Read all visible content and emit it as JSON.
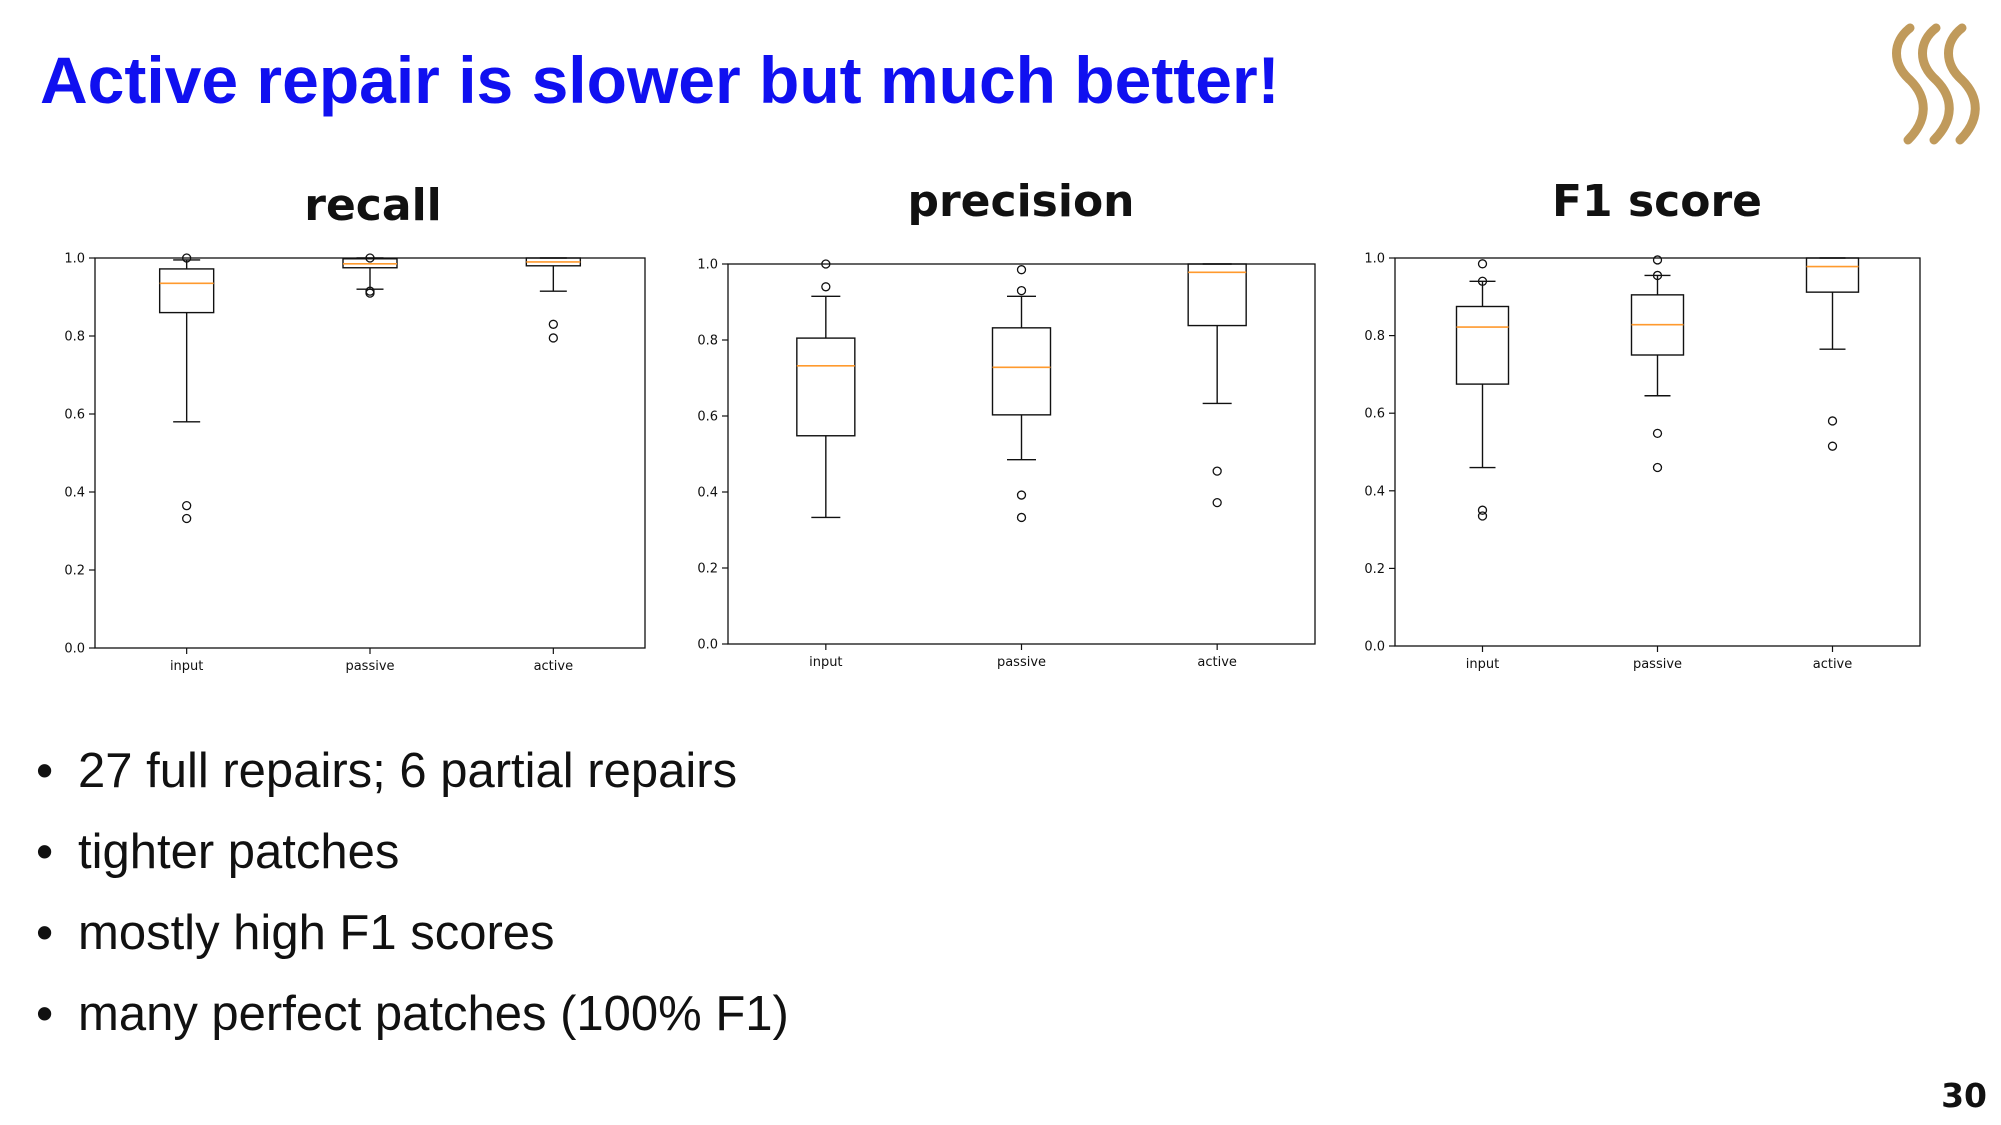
{
  "slide": {
    "title": "Active repair is slower but much better!",
    "page_number": "30",
    "title_color": "#1010f0",
    "logo_color": "#c09a5b"
  },
  "bullets": [
    "27 full repairs; 6 partial repairs",
    "tighter patches",
    "mostly high F1 scores",
    "many perfect patches (100% F1)"
  ],
  "chart_data": [
    {
      "type": "box",
      "title": "recall",
      "categories": [
        "input",
        "passive",
        "active"
      ],
      "ylim": [
        0,
        1.0
      ],
      "yticks": [
        "0.0",
        "0.2",
        "0.4",
        "0.6",
        "0.8",
        "1.0"
      ],
      "boxes": [
        {
          "whisker_low": 0.58,
          "q1": 0.86,
          "median": 0.935,
          "q3": 0.972,
          "whisker_high": 0.995,
          "outliers": [
            0.365,
            0.332,
            1.0
          ]
        },
        {
          "whisker_low": 0.92,
          "q1": 0.975,
          "median": 0.985,
          "q3": 0.998,
          "whisker_high": 1.0,
          "outliers": [
            0.915,
            0.91,
            1.0
          ]
        },
        {
          "whisker_low": 0.915,
          "q1": 0.98,
          "median": 0.99,
          "q3": 1.0,
          "whisker_high": 1.0,
          "outliers": [
            0.83,
            0.795
          ]
        }
      ]
    },
    {
      "type": "box",
      "title": "precision",
      "categories": [
        "input",
        "passive",
        "active"
      ],
      "ylim": [
        0,
        1.0
      ],
      "yticks": [
        "0.0",
        "0.2",
        "0.4",
        "0.6",
        "0.8",
        "1.0"
      ],
      "boxes": [
        {
          "whisker_low": 0.333,
          "q1": 0.548,
          "median": 0.732,
          "q3": 0.805,
          "whisker_high": 0.915,
          "outliers": [
            1.0,
            0.94
          ]
        },
        {
          "whisker_low": 0.485,
          "q1": 0.603,
          "median": 0.728,
          "q3": 0.832,
          "whisker_high": 0.915,
          "outliers": [
            0.985,
            0.93,
            0.392,
            0.333
          ]
        },
        {
          "whisker_low": 0.633,
          "q1": 0.838,
          "median": 0.978,
          "q3": 1.0,
          "whisker_high": 1.0,
          "outliers": [
            0.455,
            0.372
          ]
        }
      ]
    },
    {
      "type": "box",
      "title": "F1 score",
      "categories": [
        "input",
        "passive",
        "active"
      ],
      "ylim": [
        0,
        1.0
      ],
      "yticks": [
        "0.0",
        "0.2",
        "0.4",
        "0.6",
        "0.8",
        "1.0"
      ],
      "boxes": [
        {
          "whisker_low": 0.46,
          "q1": 0.675,
          "median": 0.822,
          "q3": 0.875,
          "whisker_high": 0.94,
          "outliers": [
            0.985,
            0.94,
            0.35,
            0.335
          ]
        },
        {
          "whisker_low": 0.645,
          "q1": 0.75,
          "median": 0.828,
          "q3": 0.905,
          "whisker_high": 0.955,
          "outliers": [
            0.995,
            0.955,
            0.548,
            0.46
          ]
        },
        {
          "whisker_low": 0.765,
          "q1": 0.912,
          "median": 0.978,
          "q3": 1.0,
          "whisker_high": 1.0,
          "outliers": [
            0.58,
            0.515
          ]
        }
      ]
    }
  ]
}
